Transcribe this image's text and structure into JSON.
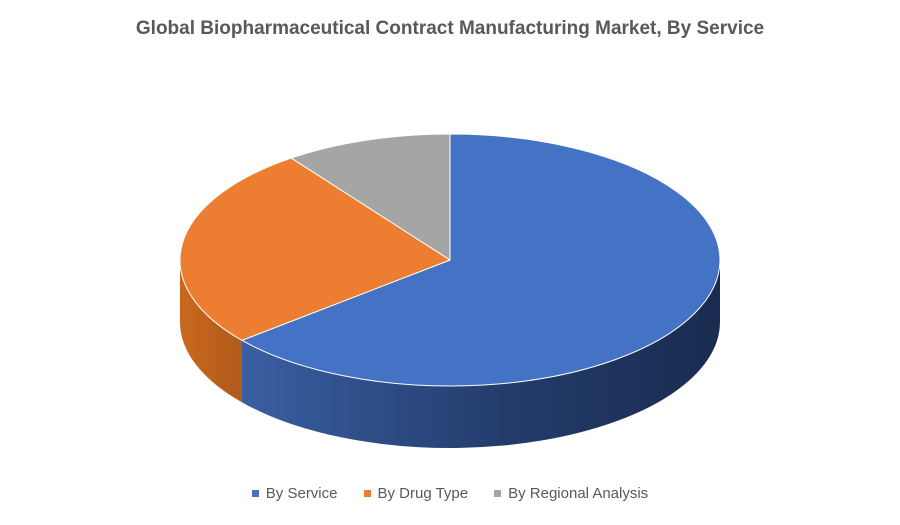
{
  "chart_data": {
    "type": "pie",
    "title": "Global Biopharmaceutical Contract Manufacturing Market, By Service",
    "categories": [
      "By Service",
      "By Drug Type",
      "By Regional Analysis"
    ],
    "values": [
      64,
      26,
      10
    ],
    "colors": [
      "#4472C4",
      "#ED7D31",
      "#A5A5A5"
    ],
    "side_colors": [
      "#2B4A85",
      "#B85E22",
      "#7A7A7A"
    ],
    "legend_position": "bottom",
    "style": "3d-pie"
  }
}
